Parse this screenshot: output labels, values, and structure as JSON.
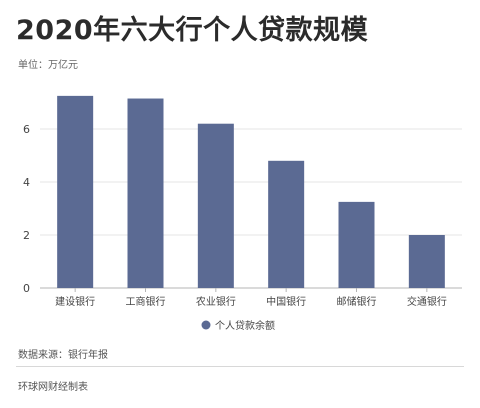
{
  "title": "2020年六大行个人贷款规模",
  "unit": "单位：万亿元",
  "source": "数据来源：银行年报",
  "credit": "环球网财经制表",
  "colors": {
    "bar": "#5b6a93",
    "grid": "#e5e5e5",
    "axis": "#b5b5b5",
    "tick_text": "#444444"
  },
  "chart_data": {
    "type": "bar",
    "categories": [
      "建设银行",
      "工商银行",
      "农业银行",
      "中国银行",
      "邮储银行",
      "交通银行"
    ],
    "series": [
      {
        "name": "个人贷款余额",
        "values": [
          7.25,
          7.15,
          6.2,
          4.8,
          3.25,
          2.0
        ]
      }
    ],
    "ylim": [
      0,
      8
    ],
    "yticks": [
      0,
      2,
      4,
      6
    ],
    "grid": true,
    "legend": "bottom-center"
  }
}
